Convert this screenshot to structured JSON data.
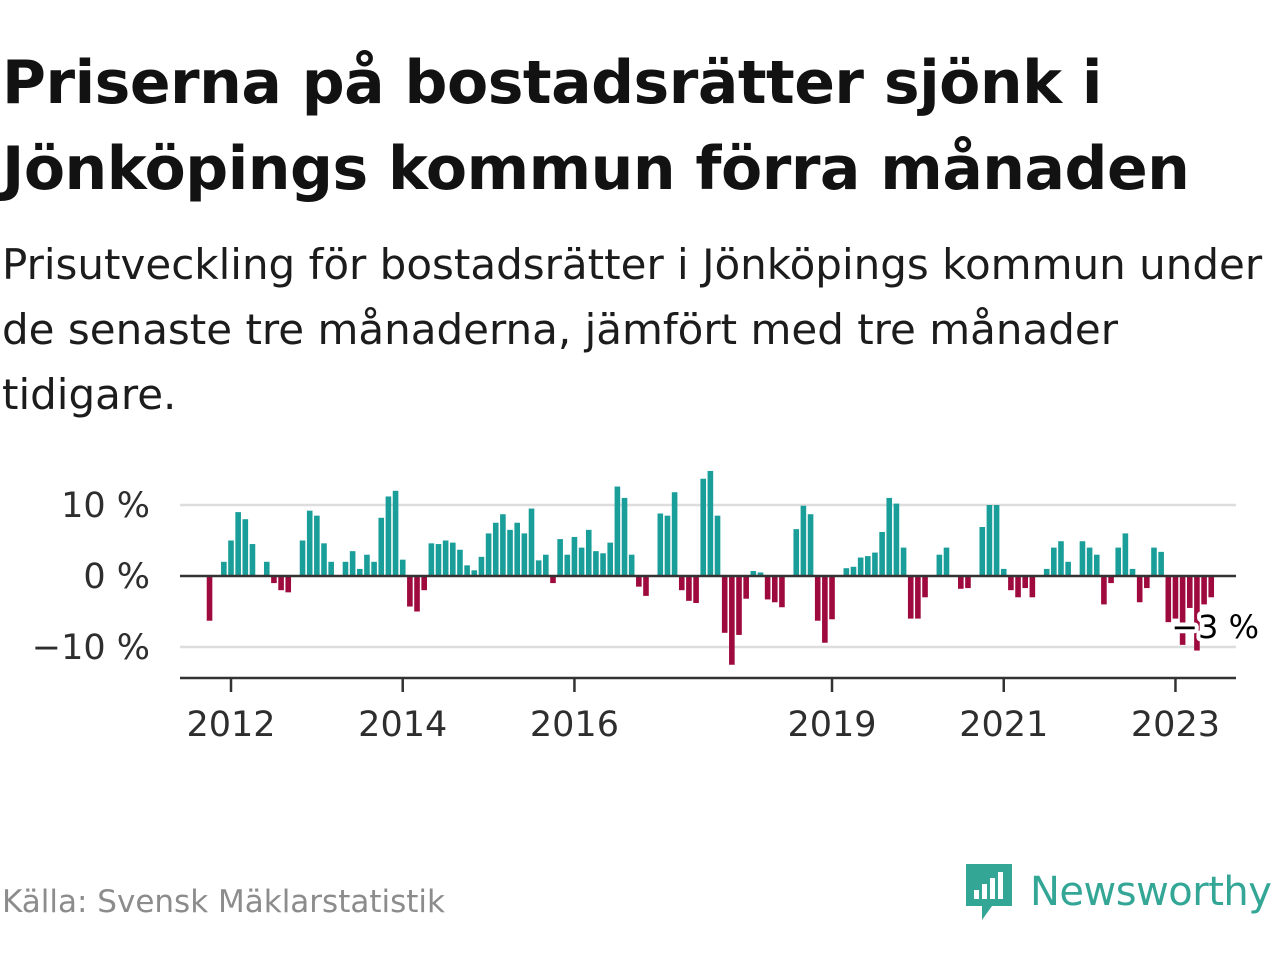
{
  "title": "Priserna på bostadsrätter sjönk i Jönköpings kommun förra månaden",
  "subtitle": "Prisutveckling för bostadsrätter i Jönköpings kommun under de senaste tre månaderna, jämfört med tre månader tidigare.",
  "source": "Källa: Svensk Mäklarstatistik",
  "brand": {
    "name": "Newsworthy",
    "icon": "newsworthy-logo-icon"
  },
  "colors": {
    "positive": "#1a9e9a",
    "negative": "#9e0a3e",
    "grid": "#dddddd",
    "axis": "#333333",
    "brand": "#33a696"
  },
  "chart_data": {
    "type": "bar",
    "title": "Priserna på bostadsrätter sjönk i Jönköpings kommun förra månaden",
    "xlabel": "",
    "ylabel": "",
    "unit": "%",
    "ylim": [
      -15,
      15
    ],
    "yticks": [
      10,
      0,
      -10
    ],
    "ytick_labels": [
      "10 %",
      "0 %",
      "−10 %"
    ],
    "xticks": [
      2012,
      2014,
      2016,
      2019,
      2021,
      2023
    ],
    "xtick_labels": [
      "2012",
      "2014",
      "2016",
      "2019",
      "2021",
      "2023"
    ],
    "grid": true,
    "start": {
      "year": 2011,
      "month": 10
    },
    "last_label": "−3 %",
    "values": [
      -6.3,
      null,
      2,
      5,
      9,
      8,
      4.5,
      0,
      2,
      -1,
      -2,
      -2.3,
      null,
      5,
      9.2,
      8.5,
      4.6,
      2,
      0,
      2,
      3.5,
      1,
      3,
      2,
      8.2,
      11.2,
      12,
      2.3,
      -4.3,
      -5,
      -2,
      4.6,
      4.5,
      5,
      4.7,
      3.7,
      1.5,
      0.8,
      2.7,
      6,
      7.5,
      8.7,
      6.5,
      7.5,
      6,
      9.5,
      2.2,
      3,
      -1,
      5.2,
      3,
      5.5,
      4,
      6.5,
      3.5,
      3.2,
      4.7,
      12.6,
      11,
      3,
      -1.5,
      -2.8,
      null,
      8.8,
      8.5,
      11.8,
      -2,
      -3.5,
      -3.8,
      13.7,
      14.8,
      8.5,
      -8,
      -12.5,
      -8.3,
      -3.2,
      0.7,
      0.5,
      -3.3,
      -3.7,
      -4.4,
      null,
      6.6,
      9.9,
      8.7,
      -6.3,
      -9.4,
      -6.1,
      null,
      1.1,
      1.3,
      2.6,
      2.8,
      3.3,
      6.2,
      11,
      10.2,
      4,
      -6,
      -6,
      -3,
      null,
      3,
      4,
      null,
      -1.8,
      -1.7,
      null,
      6.9,
      10,
      10,
      1,
      -2,
      -3,
      -1.7,
      -3,
      null,
      1,
      4,
      4.9,
      2,
      null,
      4.9,
      4,
      3,
      -4,
      -1,
      4,
      6,
      1,
      -3.7,
      -1.7,
      4,
      3.4,
      -6.5,
      -6,
      -9.7,
      -4.5,
      -10.5,
      -4,
      -3
    ]
  }
}
